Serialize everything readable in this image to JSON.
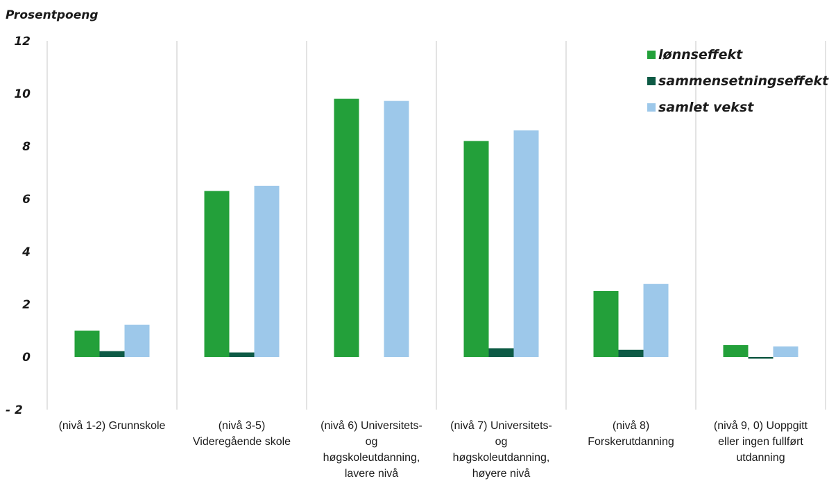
{
  "chart_data": {
    "type": "bar",
    "title": "",
    "xlabel": "",
    "ylabel": "Prosentpoeng",
    "ylim": [
      -2,
      12
    ],
    "yticks": [
      {
        "value": 12,
        "label": "12"
      },
      {
        "value": 10,
        "label": "10"
      },
      {
        "value": 8,
        "label": "8"
      },
      {
        "value": 6,
        "label": "6"
      },
      {
        "value": 4,
        "label": "4"
      },
      {
        "value": 2,
        "label": "2"
      },
      {
        "value": 0,
        "label": "0"
      },
      {
        "value": -2,
        "label": "- 2"
      }
    ],
    "grid": "vertical",
    "legend_position": "top-right",
    "categories": [
      [
        "(nivå 1-2) Grunnskole"
      ],
      [
        "(nivå 3-5)",
        "Videregående skole"
      ],
      [
        "(nivå 6) Universitets-",
        "og",
        "høgskoleutdanning,",
        "lavere nivå"
      ],
      [
        "(nivå 7) Universitets-",
        "og",
        "høgskoleutdanning,",
        "høyere nivå"
      ],
      [
        "(nivå 8)",
        "Forskerutdanning"
      ],
      [
        "(nivå 9, 0) Uoppgitt",
        "eller ingen fullført",
        "utdanning"
      ]
    ],
    "series": [
      {
        "name": "lønnseffekt",
        "color": "#23a03a",
        "values": [
          1.0,
          6.3,
          9.8,
          8.2,
          2.5,
          0.45
        ]
      },
      {
        "name": "sammensetningseffekt",
        "color": "#0d5a45",
        "values": [
          0.22,
          0.17,
          0.0,
          0.33,
          0.27,
          -0.06
        ]
      },
      {
        "name": "samlet vekst",
        "color": "#9dc8ea",
        "values": [
          1.22,
          6.5,
          9.72,
          8.6,
          2.77,
          0.4
        ]
      }
    ]
  }
}
